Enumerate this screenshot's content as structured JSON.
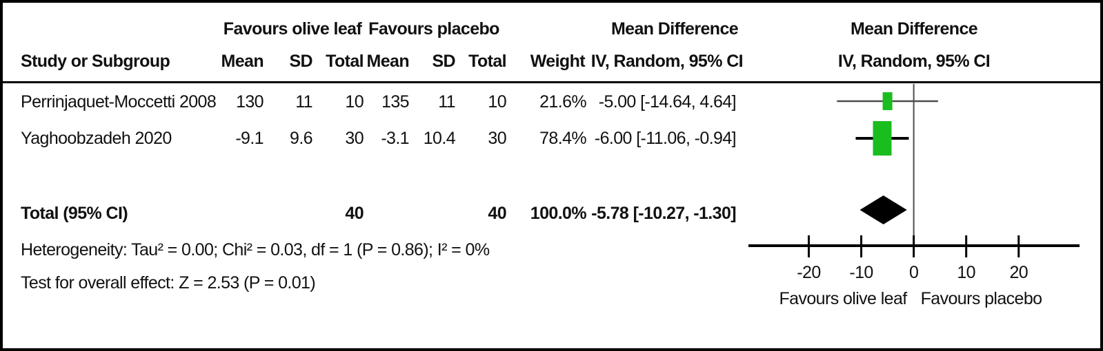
{
  "headers": {
    "group_left": "Favours olive leaf",
    "group_right": "Favours placebo",
    "effect": "Mean Difference",
    "method": "IV, Random, 95% CI",
    "study": "Study or Subgroup",
    "mean": "Mean",
    "sd": "SD",
    "total": "Total",
    "weight": "Weight"
  },
  "chart_data": {
    "type": "forest",
    "effect_measure": "Mean Difference",
    "model": "IV, Random, 95% CI",
    "studies": [
      {
        "name": "Perrinjaquet-Moccetti 2008",
        "exp_mean": "130",
        "exp_sd": "11",
        "exp_total": "10",
        "ctl_mean": "135",
        "ctl_sd": "11",
        "ctl_total": "10",
        "weight": "21.6%",
        "weight_pct": 21.6,
        "ci_text": "-5.00 [-14.64, 4.64]",
        "md": -5.0,
        "ci_low": -14.64,
        "ci_high": 4.64
      },
      {
        "name": "Yaghoobzadeh 2020",
        "exp_mean": "-9.1",
        "exp_sd": "9.6",
        "exp_total": "30",
        "ctl_mean": "-3.1",
        "ctl_sd": "10.4",
        "ctl_total": "30",
        "weight": "78.4%",
        "weight_pct": 78.4,
        "ci_text": "-6.00 [-11.06, -0.94]",
        "md": -6.0,
        "ci_low": -11.06,
        "ci_high": -0.94
      }
    ],
    "total": {
      "label": "Total (95% CI)",
      "exp_total": "40",
      "ctl_total": "40",
      "weight": "100.0%",
      "ci_text": "-5.78 [-10.27, -1.30]",
      "md": -5.78,
      "ci_low": -10.27,
      "ci_high": -1.3
    },
    "heterogeneity": "Heterogeneity: Tau² = 0.00; Chi² = 0.03, df = 1 (P = 0.86); I² = 0%",
    "overall_effect": "Test for overall effect: Z = 2.53 (P = 0.01)",
    "axis": {
      "ticks": [
        -20,
        -10,
        0,
        10,
        20
      ],
      "min": -31.5,
      "max": 31.6,
      "grid": false
    },
    "footer_left": "Favours olive leaf",
    "footer_right": "Favours placebo",
    "colors": {
      "marker_green": "#1abd1e",
      "ci_gray": "#4d4d4d",
      "axis_black": "#000000"
    }
  }
}
